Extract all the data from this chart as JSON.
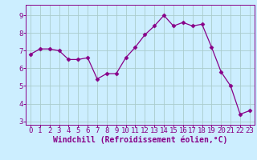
{
  "x": [
    0,
    1,
    2,
    3,
    4,
    5,
    6,
    7,
    8,
    9,
    10,
    11,
    12,
    13,
    14,
    15,
    16,
    17,
    18,
    19,
    20,
    21,
    22,
    23
  ],
  "y": [
    6.8,
    7.1,
    7.1,
    7.0,
    6.5,
    6.5,
    6.6,
    5.4,
    5.7,
    5.7,
    6.6,
    7.2,
    7.9,
    8.4,
    9.0,
    8.4,
    8.6,
    8.4,
    8.5,
    7.2,
    5.8,
    5.0,
    3.4,
    3.6
  ],
  "line_color": "#880088",
  "marker": "D",
  "marker_size": 2.5,
  "bg_color": "#cceeff",
  "grid_color": "#aacccc",
  "xlabel": "Windchill (Refroidissement éolien,°C)",
  "ylim": [
    2.8,
    9.6
  ],
  "xlim": [
    -0.5,
    23.5
  ],
  "yticks": [
    3,
    4,
    5,
    6,
    7,
    8,
    9
  ],
  "xticks": [
    0,
    1,
    2,
    3,
    4,
    5,
    6,
    7,
    8,
    9,
    10,
    11,
    12,
    13,
    14,
    15,
    16,
    17,
    18,
    19,
    20,
    21,
    22,
    23
  ],
  "tick_color": "#880088",
  "label_color": "#880088",
  "xlabel_fontsize": 7,
  "tick_fontsize": 6.5
}
